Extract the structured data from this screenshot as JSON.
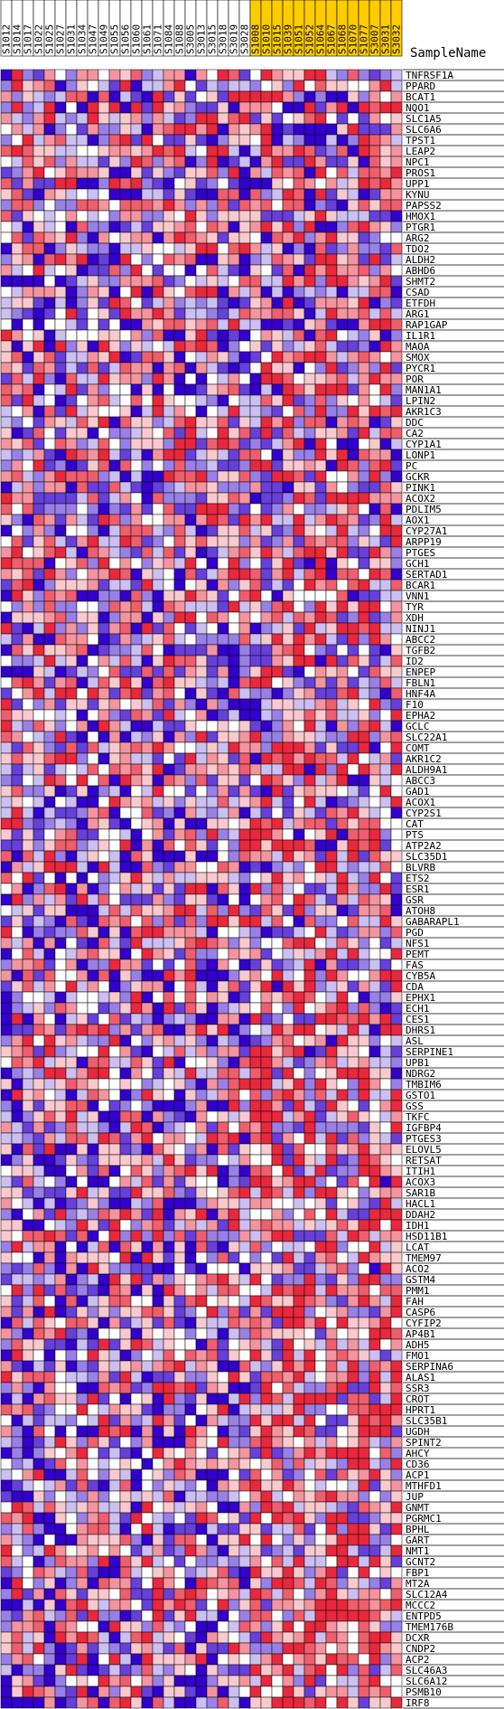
{
  "chart_data": {
    "type": "heatmap",
    "title": "",
    "row_header": "SampleName",
    "columns": [
      {
        "name": "S1012",
        "group": "a"
      },
      {
        "name": "S1014",
        "group": "a"
      },
      {
        "name": "S1017",
        "group": "a"
      },
      {
        "name": "S1022",
        "group": "a"
      },
      {
        "name": "S1025",
        "group": "a"
      },
      {
        "name": "S1027",
        "group": "a"
      },
      {
        "name": "S1031",
        "group": "a"
      },
      {
        "name": "S1034",
        "group": "a"
      },
      {
        "name": "S1047",
        "group": "a"
      },
      {
        "name": "S1049",
        "group": "a"
      },
      {
        "name": "S1055",
        "group": "a"
      },
      {
        "name": "S1056",
        "group": "a"
      },
      {
        "name": "S1060",
        "group": "a"
      },
      {
        "name": "S1061",
        "group": "a"
      },
      {
        "name": "S1071",
        "group": "a"
      },
      {
        "name": "S1084",
        "group": "a"
      },
      {
        "name": "S1088",
        "group": "a"
      },
      {
        "name": "S3005",
        "group": "a"
      },
      {
        "name": "S3013",
        "group": "a"
      },
      {
        "name": "S3015",
        "group": "a"
      },
      {
        "name": "S3018",
        "group": "a"
      },
      {
        "name": "S3019",
        "group": "a"
      },
      {
        "name": "S3028",
        "group": "a"
      },
      {
        "name": "S1008",
        "group": "b"
      },
      {
        "name": "S1010",
        "group": "b"
      },
      {
        "name": "S1015",
        "group": "b"
      },
      {
        "name": "S1039",
        "group": "b"
      },
      {
        "name": "S1051",
        "group": "b"
      },
      {
        "name": "S1052",
        "group": "b"
      },
      {
        "name": "S1064",
        "group": "b"
      },
      {
        "name": "S1067",
        "group": "b"
      },
      {
        "name": "S1068",
        "group": "b"
      },
      {
        "name": "S1070",
        "group": "b"
      },
      {
        "name": "S1077",
        "group": "b"
      },
      {
        "name": "S3007",
        "group": "b"
      },
      {
        "name": "S3031",
        "group": "b"
      },
      {
        "name": "S3032",
        "group": "b"
      }
    ],
    "rows": [
      "TNFRSF1A",
      "PPARD",
      "BCAT1",
      "NQO1",
      "SLC1A5",
      "SLC6A6",
      "TPST1",
      "LEAP2",
      "NPC1",
      "PROS1",
      "UPP1",
      "KYNU",
      "PAPSS2",
      "HMOX1",
      "PTGR1",
      "ARG2",
      "TDO2",
      "ALDH2",
      "ABHD6",
      "SHMT2",
      "CSAD",
      "ETFDH",
      "ARG1",
      "RAP1GAP",
      "IL1R1",
      "MAOA",
      "SMOX",
      "PYCR1",
      "POR",
      "MAN1A1",
      "LPIN2",
      "AKR1C3",
      "DDC",
      "CA2",
      "CYP1A1",
      "LONP1",
      "PC",
      "GCKR",
      "PINK1",
      "ACOX2",
      "PDLIM5",
      "AOX1",
      "CYP27A1",
      "ARPP19",
      "PTGES",
      "GCH1",
      "SERTAD1",
      "BCAR1",
      "VNN1",
      "TYR",
      "XDH",
      "NINJ1",
      "ABCC2",
      "TGFB2",
      "ID2",
      "ENPEP",
      "FBLN1",
      "HNF4A",
      "F10",
      "EPHA2",
      "GCLC",
      "SLC22A1",
      "COMT",
      "AKR1C2",
      "ALDH9A1",
      "ABCC3",
      "GAD1",
      "ACOX1",
      "CYP2S1",
      "CAT",
      "PTS",
      "ATP2A2",
      "SLC35D1",
      "BLVRB",
      "ETS2",
      "ESR1",
      "GSR",
      "ATOH8",
      "GABARAPL1",
      "PGD",
      "NFS1",
      "PEMT",
      "FAS",
      "CYB5A",
      "CDA",
      "EPHX1",
      "ECH1",
      "CES1",
      "DHRS1",
      "ASL",
      "SERPINE1",
      "UPB1",
      "NDRG2",
      "TMBIM6",
      "GSTO1",
      "GSS",
      "TKFC",
      "IGFBP4",
      "PTGES3",
      "ELOVL5",
      "RETSAT",
      "ITIH1",
      "ACOX3",
      "SAR1B",
      "HACL1",
      "DDAH2",
      "IDH1",
      "HSD11B1",
      "LCAT",
      "TMEM97",
      "ACO2",
      "GSTM4",
      "PMM1",
      "FAH",
      "CASP6",
      "CYFIP2",
      "AP4B1",
      "ADH5",
      "FMO1",
      "SERPINA6",
      "ALAS1",
      "SSR3",
      "CROT",
      "HPRT1",
      "SLC35B1",
      "UGDH",
      "SPINT2",
      "AHCY",
      "CD36",
      "ACP1",
      "MTHFD1",
      "JUP",
      "GNMT",
      "PGRMC1",
      "BPHL",
      "GART",
      "NMT1",
      "GCNT2",
      "FBP1",
      "MT2A",
      "SLC12A4",
      "MCCC2",
      "ENTPD5",
      "TMEM176B",
      "DCXR",
      "CNDP2",
      "ACP2",
      "SLC46A3",
      "SLC6A12",
      "PSMB10",
      "IRF8"
    ],
    "color_scale": {
      "low": "#3300cc",
      "mid": "#ffffff",
      "high": "#e8283c"
    },
    "group_colors": {
      "a": "#ffffff",
      "b": "#ffcc00"
    },
    "seed": 7
  }
}
